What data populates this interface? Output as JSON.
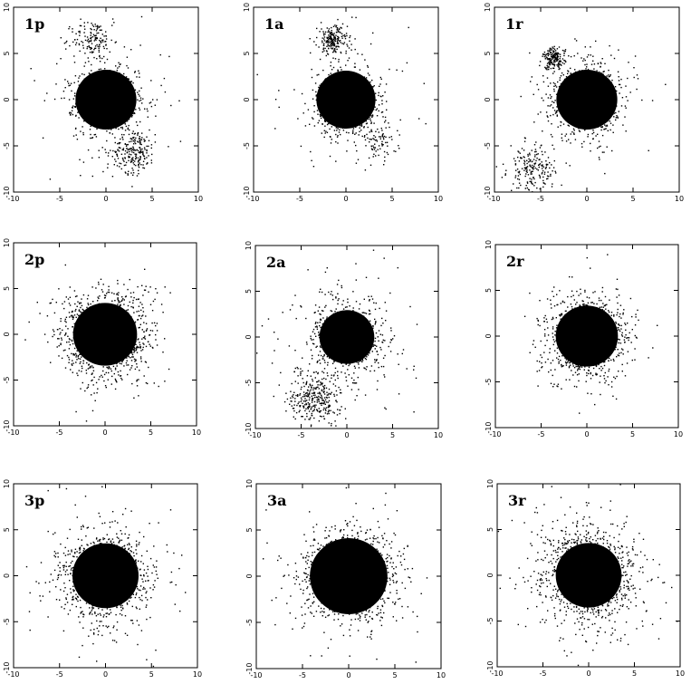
{
  "chart_data": [
    {
      "type": "scatter",
      "label": "1p",
      "xlim": [
        -10,
        10
      ],
      "ylim": [
        -10,
        10
      ],
      "x_ticks": [
        "-10",
        "-5",
        "0",
        "5",
        "10"
      ],
      "y_ticks": [
        "-10",
        "-5",
        "0",
        "5",
        "10"
      ],
      "core": {
        "x": 0,
        "y": 0,
        "radius": 3.3
      },
      "clusters": [
        {
          "x": 0,
          "y": 0,
          "spread": 3.2,
          "count": 900
        },
        {
          "x": -1.5,
          "y": 6.5,
          "spread": 2.2,
          "count": 140
        },
        {
          "x": 3.0,
          "y": -5.5,
          "spread": 2.3,
          "count": 220
        },
        {
          "x": 0,
          "y": 0,
          "spread": 7.0,
          "count": 160
        }
      ]
    },
    {
      "type": "scatter",
      "label": "1a",
      "xlim": [
        -10,
        10
      ],
      "ylim": [
        -10,
        10
      ],
      "x_ticks": [
        "-10",
        "-5",
        "0",
        "5",
        "10"
      ],
      "y_ticks": [
        "-10",
        "-5",
        "0",
        "5",
        "10"
      ],
      "core": {
        "x": 0,
        "y": 0,
        "radius": 3.2
      },
      "clusters": [
        {
          "x": 0,
          "y": 0,
          "spread": 3.0,
          "count": 900
        },
        {
          "x": -1.5,
          "y": 6.5,
          "spread": 1.6,
          "count": 200
        },
        {
          "x": 3.5,
          "y": -4.5,
          "spread": 2.0,
          "count": 80
        },
        {
          "x": 0,
          "y": 0,
          "spread": 7.0,
          "count": 170
        }
      ]
    },
    {
      "type": "scatter",
      "label": "1r",
      "xlim": [
        -10,
        10
      ],
      "ylim": [
        -10,
        10
      ],
      "x_ticks": [
        "-10",
        "-5",
        "0",
        "5",
        "10"
      ],
      "y_ticks": [
        "-10",
        "-5",
        "0",
        "5",
        "10"
      ],
      "core": {
        "x": 0,
        "y": 0,
        "radius": 3.3
      },
      "clusters": [
        {
          "x": 0,
          "y": 0,
          "spread": 3.2,
          "count": 900
        },
        {
          "x": -3.6,
          "y": 4.5,
          "spread": 1.2,
          "count": 180
        },
        {
          "x": -6.0,
          "y": -7.5,
          "spread": 2.5,
          "count": 200
        },
        {
          "x": 0,
          "y": 0,
          "spread": 7.0,
          "count": 150
        }
      ]
    },
    {
      "type": "scatter",
      "label": "2p",
      "xlim": [
        -10,
        10
      ],
      "ylim": [
        -10,
        10
      ],
      "x_ticks": [
        "-10",
        "-5",
        "0",
        "5",
        "10"
      ],
      "y_ticks": [
        "-10",
        "-5",
        "0",
        "5",
        "10"
      ],
      "core": {
        "x": 0,
        "y": 0,
        "radius": 3.5
      },
      "clusters": [
        {
          "x": 0,
          "y": 0,
          "spread": 3.6,
          "count": 1200
        },
        {
          "x": 0,
          "y": 0,
          "spread": 6.0,
          "count": 500
        }
      ]
    },
    {
      "type": "scatter",
      "label": "2a",
      "xlim": [
        -10,
        10
      ],
      "ylim": [
        -10,
        10
      ],
      "x_ticks": [
        "-10",
        "-5",
        "0",
        "5",
        "10"
      ],
      "y_ticks": [
        "-10",
        "-5",
        "0",
        "5",
        "10"
      ],
      "core": {
        "x": 0,
        "y": 0,
        "radius": 3.0
      },
      "clusters": [
        {
          "x": 0,
          "y": 0,
          "spread": 3.0,
          "count": 900
        },
        {
          "x": -3.5,
          "y": -6.5,
          "spread": 2.8,
          "count": 320
        },
        {
          "x": 0,
          "y": 0,
          "spread": 7.0,
          "count": 260
        }
      ]
    },
    {
      "type": "scatter",
      "label": "2r",
      "xlim": [
        -10,
        10
      ],
      "ylim": [
        -10,
        10
      ],
      "x_ticks": [
        "-10",
        "-5",
        "0",
        "5",
        "10"
      ],
      "y_ticks": [
        "-10",
        "-5",
        "0",
        "5",
        "10"
      ],
      "core": {
        "x": 0,
        "y": 0,
        "radius": 3.4
      },
      "clusters": [
        {
          "x": 0,
          "y": 0,
          "spread": 3.4,
          "count": 1100
        },
        {
          "x": 0,
          "y": 0,
          "spread": 5.5,
          "count": 400
        }
      ]
    },
    {
      "type": "scatter",
      "label": "3p",
      "xlim": [
        -10,
        10
      ],
      "ylim": [
        -10,
        10
      ],
      "x_ticks": [
        "-10",
        "-5",
        "0",
        "5",
        "10"
      ],
      "y_ticks": [
        "-10",
        "-5",
        "0",
        "5",
        "10"
      ],
      "core": {
        "x": 0,
        "y": 0,
        "radius": 3.6
      },
      "clusters": [
        {
          "x": 0,
          "y": 0,
          "spread": 3.5,
          "count": 1100
        },
        {
          "x": 0,
          "y": 0,
          "spread": 6.5,
          "count": 450
        }
      ]
    },
    {
      "type": "scatter",
      "label": "3a",
      "xlim": [
        -10,
        10
      ],
      "ylim": [
        -10,
        10
      ],
      "x_ticks": [
        "-10",
        "-5",
        "0",
        "5",
        "10"
      ],
      "y_ticks": [
        "-10",
        "-5",
        "0",
        "5",
        "10"
      ],
      "core": {
        "x": 0,
        "y": 0,
        "radius": 4.2
      },
      "clusters": [
        {
          "x": 0,
          "y": 0,
          "spread": 4.0,
          "count": 1300
        },
        {
          "x": 0,
          "y": 0,
          "spread": 7.0,
          "count": 380
        }
      ]
    },
    {
      "type": "scatter",
      "label": "3r",
      "xlim": [
        -10,
        10
      ],
      "ylim": [
        -10,
        10
      ],
      "x_ticks": [
        "-10",
        "-5",
        "0",
        "5",
        "10"
      ],
      "y_ticks": [
        "-10",
        "-5",
        "0",
        "5",
        "10"
      ],
      "core": {
        "x": 0,
        "y": 0,
        "radius": 3.6
      },
      "clusters": [
        {
          "x": 0,
          "y": 0,
          "spread": 3.8,
          "count": 1200
        },
        {
          "x": 0,
          "y": 0,
          "spread": 7.0,
          "count": 520
        }
      ]
    }
  ]
}
